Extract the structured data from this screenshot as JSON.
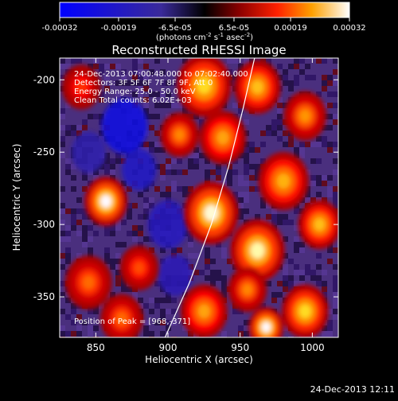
{
  "colorbar": {
    "ticks": [
      "-0.00032",
      "-0.00019",
      "-6.5e-05",
      "6.5e-05",
      "0.00019",
      "0.00032"
    ],
    "tick_values": [
      -0.00032,
      -0.00019,
      -6.5e-05,
      6.5e-05,
      0.00019,
      0.00032
    ],
    "units_main": "(photons cm",
    "units_sup1": "-2",
    "units_mid1": " s",
    "units_sup2": "-1",
    "units_mid2": " asec",
    "units_sup3": "-2",
    "units_end": ")",
    "range": [
      -0.00032,
      0.00032
    ]
  },
  "chart_data": {
    "type": "heatmap",
    "title": "Reconstructed RHESSI Image",
    "xlabel": "Heliocentric X (arcsec)",
    "ylabel": "Heliocentric Y (arcsec)",
    "xlim": [
      825,
      1018
    ],
    "ylim": [
      -378,
      -185
    ],
    "x_ticks": [
      850,
      900,
      950,
      1000
    ],
    "y_ticks": [
      -200,
      -250,
      -300,
      -350
    ],
    "annotations": [
      "24-Dec-2013 07:00:48.000 to 07:02:40.000",
      "Detectors: 3F 5F 6F 7F 8F 9F, Att 0",
      "Energy Range: 25.0 - 50.0 keV",
      "Clean     Total counts: 6.02E+03"
    ],
    "peak_label": "Position of Peak = [968,-371]",
    "peak": [
      968,
      -371
    ],
    "limb_curve": [
      [
        898,
        -378
      ],
      [
        915,
        -340
      ],
      [
        930,
        -300
      ],
      [
        942,
        -260
      ],
      [
        952,
        -220
      ],
      [
        960,
        -185
      ]
    ],
    "sources": [
      {
        "x": 857,
        "y": -284,
        "value": 0.00032,
        "r": 11
      },
      {
        "x": 925,
        "y": -204,
        "value": 0.00028,
        "r": 14
      },
      {
        "x": 908,
        "y": -238,
        "value": 0.00022,
        "r": 10
      },
      {
        "x": 938,
        "y": -240,
        "value": 0.00024,
        "r": 12
      },
      {
        "x": 930,
        "y": -292,
        "value": 0.00031,
        "r": 14
      },
      {
        "x": 962,
        "y": -318,
        "value": 0.0003,
        "r": 14
      },
      {
        "x": 980,
        "y": -270,
        "value": 0.00025,
        "r": 13
      },
      {
        "x": 995,
        "y": -225,
        "value": 0.00023,
        "r": 11
      },
      {
        "x": 962,
        "y": -205,
        "value": 0.00026,
        "r": 12
      },
      {
        "x": 1005,
        "y": -300,
        "value": 0.00026,
        "r": 11
      },
      {
        "x": 995,
        "y": -360,
        "value": 0.00028,
        "r": 12
      },
      {
        "x": 968,
        "y": -371,
        "value": 0.00032,
        "r": 9
      },
      {
        "x": 925,
        "y": -360,
        "value": 0.00024,
        "r": 12
      },
      {
        "x": 845,
        "y": -340,
        "value": 0.0002,
        "r": 12
      },
      {
        "x": 868,
        "y": -365,
        "value": 0.0002,
        "r": 11
      },
      {
        "x": 880,
        "y": -330,
        "value": 0.00018,
        "r": 10
      },
      {
        "x": 840,
        "y": -205,
        "value": 0.00016,
        "r": 10
      },
      {
        "x": 955,
        "y": -345,
        "value": 0.00022,
        "r": 10
      }
    ],
    "negatives": [
      {
        "x": 870,
        "y": -232,
        "value": -0.00025,
        "r": 16
      },
      {
        "x": 880,
        "y": -262,
        "value": -0.00018,
        "r": 12
      },
      {
        "x": 900,
        "y": -300,
        "value": -0.00016,
        "r": 14
      },
      {
        "x": 905,
        "y": -335,
        "value": -0.00014,
        "r": 12
      },
      {
        "x": 845,
        "y": -250,
        "value": -0.00012,
        "r": 12
      }
    ]
  },
  "footer": "24-Dec-2013 12:11"
}
